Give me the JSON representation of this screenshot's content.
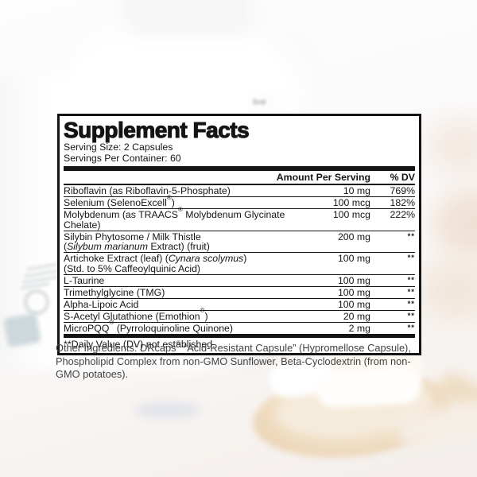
{
  "background": {
    "bottle_label_fragment": "Sup"
  },
  "colors": {
    "panel_background": "#ffffff",
    "panel_text": "#141414",
    "other_ingredients_text": "#434343",
    "spoon_wood": "#eed9bd",
    "capsule_white": "#ffffff",
    "badge_blue_gray": "#c9d4d9"
  },
  "panel": {
    "title": "Supplement Facts",
    "serving_size": "Serving Size: 2 Capsules",
    "servings_per_container": "Servings Per Container: 60",
    "header": {
      "amount": "Amount Per Serving",
      "dv": "% DV"
    },
    "rows": [
      {
        "lines": [
          [
            {
              "t": "Riboflavin (as Riboflavin-5-Phosphate)"
            }
          ]
        ],
        "amount": "10 mg",
        "dv": "769%"
      },
      {
        "lines": [
          [
            {
              "t": "Selenium (SelenoExcell®)"
            }
          ]
        ],
        "amount": "100 mcg",
        "dv": "182%"
      },
      {
        "lines": [
          [
            {
              "t": "Molybdenum (as TRAACS® Molybdenum Glycinate Chelate)"
            }
          ]
        ],
        "amount": "100 mcg",
        "dv": "222%"
      },
      {
        "lines": [
          [
            {
              "t": "Silybin Phytosome / Milk Thistle"
            }
          ],
          [
            {
              "t": "("
            },
            {
              "t": "Silybum marianum",
              "i": true
            },
            {
              "t": " Extract) (fruit)"
            }
          ]
        ],
        "amount": "200 mg",
        "dv": "**"
      },
      {
        "lines": [
          [
            {
              "t": "Artichoke Extract (leaf) ("
            },
            {
              "t": "Cynara scolymus",
              "i": true
            },
            {
              "t": ")"
            }
          ],
          [
            {
              "t": "(Std. to 5% Caffeoylquinic Acid)"
            }
          ]
        ],
        "amount": "100 mg",
        "dv": "**"
      },
      {
        "lines": [
          [
            {
              "t": "L-Taurine"
            }
          ]
        ],
        "amount": "100 mg",
        "dv": "**"
      },
      {
        "lines": [
          [
            {
              "t": "Trimethylglycine (TMG)"
            }
          ]
        ],
        "amount": "100 mg",
        "dv": "**"
      },
      {
        "lines": [
          [
            {
              "t": "Alpha-Lipoic Acid"
            }
          ]
        ],
        "amount": "100 mg",
        "dv": "**"
      },
      {
        "lines": [
          [
            {
              "t": "S-Acetyl Glutathione (Emothion®)"
            }
          ]
        ],
        "amount": "20 mg",
        "dv": "**"
      },
      {
        "lines": [
          [
            {
              "t": "MicroPQQ® (Pyrroloquinoline Quinone)"
            }
          ]
        ],
        "amount": "2 mg",
        "dv": "**"
      }
    ],
    "footnote": "**Daily Value (DV) not established."
  },
  "other_ingredients": "Other Ingredients: DRcaps® “Acid-Resistant Capsule” (Hypromellose Capsule), Phospholipid Complex from non-GMO Sunflower, Beta-Cyclodextrin (from non-GMO potatoes)."
}
